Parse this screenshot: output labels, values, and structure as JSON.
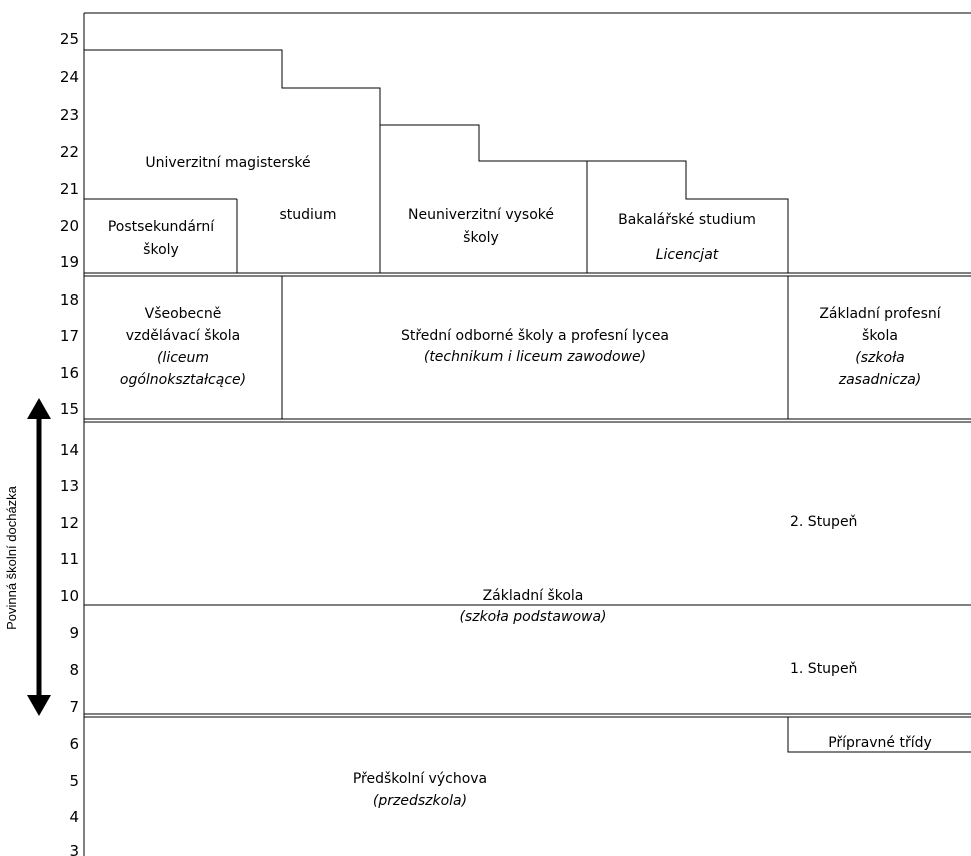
{
  "ages": [
    "25",
    "24",
    "23",
    "22",
    "21",
    "20",
    "19",
    "18",
    "17",
    "16",
    "15",
    "14",
    "13",
    "12",
    "11",
    "10",
    "9",
    "8",
    "7",
    "6",
    "5",
    "4",
    "3"
  ],
  "compulsory_label": "Povinná školní docházka",
  "higher": {
    "magister": {
      "line1": "Univerzitní magisterské",
      "line2": "studium"
    },
    "postsecondary": {
      "line1": "Postsekundární",
      "line2": "školy"
    },
    "nonuniversity": {
      "line1": "Neuniverzitní vysoké",
      "line2": "školy"
    },
    "bachelor": {
      "line1": "Bakalářské studium",
      "line2": "Licencjat"
    }
  },
  "secondary": {
    "general": {
      "line1": "Všeobecně",
      "line2": "vzdělávací škola",
      "line3": "(liceum",
      "line4": "ogólnokształcące)"
    },
    "vocational": {
      "line1": "Střední odborné školy a profesní lycea",
      "line2": "(technikum i liceum zawodowe)"
    },
    "basic_vocational": {
      "line1": "Základní profesní",
      "line2": "škola",
      "line3": "(szkoła",
      "line4": "zasadnicza)"
    }
  },
  "primary": {
    "line1": "Základní škola",
    "line2": "(szkoła podstawowa)",
    "stage2": "2. Stupeň",
    "stage1": "1. Stupeň"
  },
  "preschool": {
    "line1": "Předškolní výchova",
    "line2": "(przedszkola)",
    "prep": "Přípravné třídy"
  }
}
